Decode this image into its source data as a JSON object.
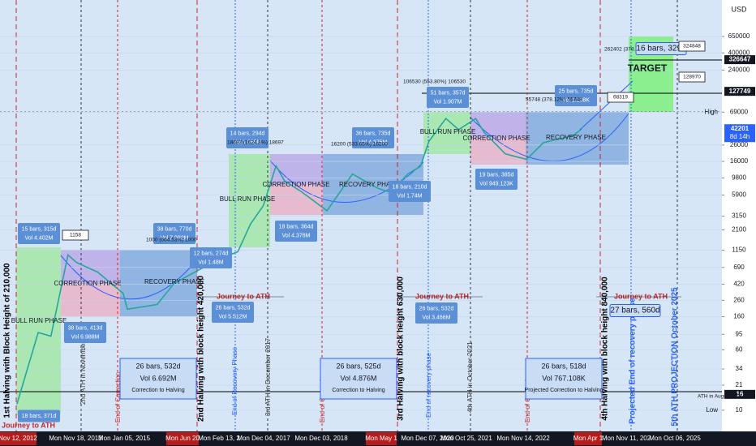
{
  "chart_data": {
    "type": "line",
    "log_scale": true,
    "grid": true,
    "currency": "USD",
    "x": [
      "2012-11",
      "2013-04",
      "2013-07",
      "2013-11",
      "2014-01",
      "2014-06",
      "2014-12",
      "2015-01",
      "2015-08",
      "2015-12",
      "2016-06",
      "2016-12",
      "2017-03",
      "2017-06",
      "2017-09",
      "2017-12",
      "2018-02",
      "2018-06",
      "2018-12",
      "2019-06",
      "2019-12",
      "2020-03",
      "2020-07",
      "2020-10",
      "2020-12",
      "2021-04",
      "2021-07",
      "2021-11",
      "2022-01",
      "2022-06",
      "2022-11",
      "2023-03",
      "2023-10",
      "2023-12"
    ],
    "values": [
      12,
      100,
      90,
      1000,
      800,
      600,
      320,
      200,
      230,
      430,
      650,
      950,
      1100,
      2500,
      4300,
      14000,
      9000,
      6500,
      3700,
      11000,
      7200,
      6400,
      11000,
      13800,
      29000,
      57000,
      41000,
      57000,
      38000,
      20000,
      17000,
      28000,
      34500,
      42201
    ],
    "color": "#26a69a",
    "xlim": [
      "2012-07",
      "2026-09"
    ],
    "ylim": [
      5.6,
      1917000
    ],
    "yticks": [
      650000,
      400000,
      240000,
      69000,
      26000,
      16000,
      9800,
      5900,
      3150,
      2100,
      1150,
      690,
      420,
      260,
      160,
      95,
      60,
      34,
      21,
      10
    ],
    "price_boxes": [
      326647,
      127749,
      42201,
      16
    ],
    "countdown": "8d 14h",
    "high_label": "High",
    "low_label": "Low",
    "date_labels": [
      "Nov 12, 2012",
      "Mon Nov 18, 2013",
      "Mon Jan 05, 2015",
      "Mon Jun 20",
      "Mon Feb 13, 2",
      "Mon Dec 04, 2017",
      "Mon Dec 03, 2018",
      "Mon May 1",
      "Mon Dec 07, 2020",
      "Mon Oct 25, 2021",
      "Mon Nov 14, 2022",
      "Mon Apr 1",
      "Mon Nov 11, 202",
      "Mon Oct 06, 2025"
    ],
    "vertical_labels": [
      "1st Halving with Block Height of 210,000",
      "2nd ATH in November 2013",
      "End of Correction",
      "2nd Halving with block height 420,000",
      "End of Recovery Phase",
      "3rd ATH in December 2017",
      "End of Correction",
      "3rd Halving with block height 630,000",
      "End of recovery phase",
      "4th ATH in October 2021",
      "End of Correction",
      "4th Halving with block height 840,000",
      "Projected End of recovery phase",
      "5th ATH PROJECTION October 2025"
    ],
    "phase_labels": [
      "BULL RUN PHASE",
      "CORRECTION PHASE",
      "RECOVERY PHASE",
      "BULL RUN PHASE",
      "CORRECTION PHASE",
      "RECOVERY PHASE",
      "BULL RUN PHASE",
      "CORRECTION PHASE",
      "RECOVERY PHASE"
    ],
    "info_boxes": [
      {
        "lines": [
          "15 bars, 315d",
          "Vol 4.402M"
        ]
      },
      {
        "lines": [
          "38 bars, 770d",
          "Vol 7.992M"
        ]
      },
      {
        "lines": [
          "38 bars, 413d",
          "Vol 6.988M"
        ]
      },
      {
        "lines": [
          "12 bars, 274d",
          "Vol 1.48M"
        ]
      },
      {
        "lines": [
          "26 bars, 532d",
          "Vol 5.512M"
        ]
      },
      {
        "lines": [
          "14 bars, 294d",
          "Vol 1.865M"
        ]
      },
      {
        "lines": [
          "18 bars, 364d",
          "Vol 4.376M"
        ]
      },
      {
        "lines": [
          "36 bars, 735d",
          "Vol 4.375M"
        ]
      },
      {
        "lines": [
          "18 bars, 210d",
          "Vol 1.74M"
        ]
      },
      {
        "lines": [
          "26 bars, 532d",
          "Vol 3.466M"
        ]
      },
      {
        "lines": [
          "51 bars, 357d",
          "Vol 1.907M"
        ]
      },
      {
        "lines": [
          "19 bars, 385d",
          "Vol 949.123K"
        ]
      },
      {
        "lines": [
          "25 bars, 735d",
          "Vol 1.108K"
        ]
      },
      {
        "lines": [
          "18 bars, 371d"
        ]
      },
      {
        "lines": [
          "27 bars, 560d"
        ]
      },
      {
        "lines": [
          "16 bars, 329d"
        ]
      }
    ],
    "halving_boxes": [
      {
        "lines": [
          "26 bars, 532d",
          "Vol 6.692M",
          "Correction to Halving"
        ]
      },
      {
        "lines": [
          "26 bars, 525d",
          "Vol 4.876M",
          "Correction to Halving"
        ]
      },
      {
        "lines": [
          "26 bars, 518d",
          "Vol 767.108K",
          "Projected Correction to Halving"
        ]
      }
    ],
    "journey_labels": [
      "Journey to ATH",
      "Journey to ATH",
      "Journey to ATH",
      "Journey to ATH"
    ],
    "price_labels": [
      "1158",
      "1000 (664.53%) 1000",
      "18697 (1624.8%) 18697",
      "16200 (533.65%) 16200",
      "106530 (553.80%) 106530",
      "55748 (378.12%) 55748",
      "262402 (378...",
      "324848",
      "128970",
      "68319",
      "ATH in August, 2012"
    ],
    "target_label": "TARGET"
  }
}
